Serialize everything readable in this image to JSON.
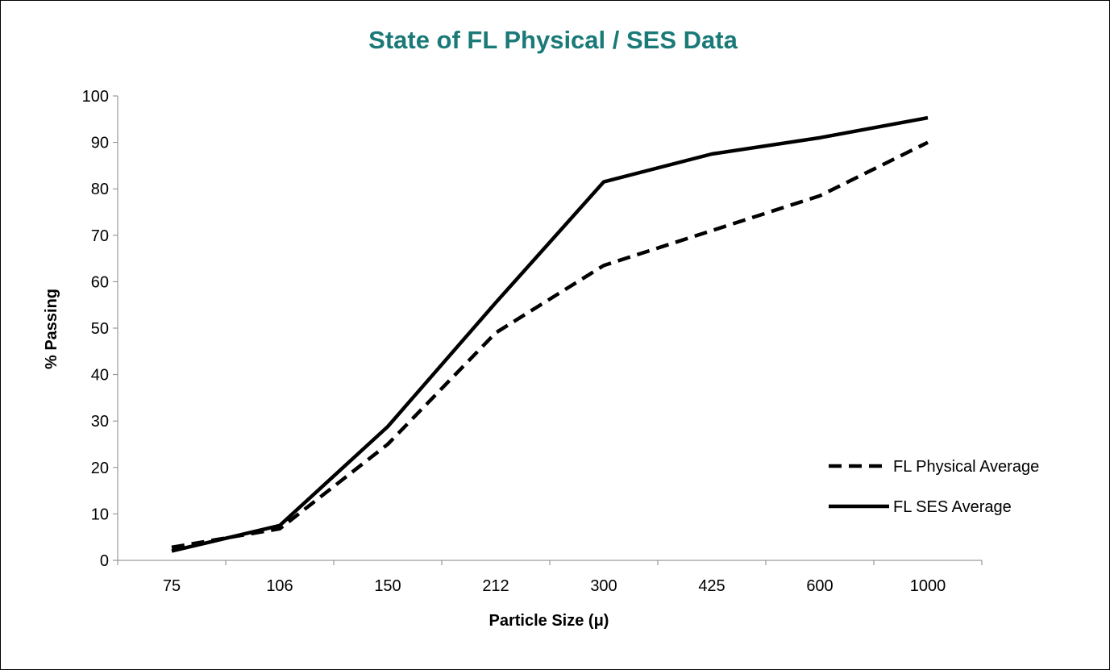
{
  "chart_data": {
    "type": "line",
    "title": "State of FL Physical / SES Data",
    "title_color": "#1A7A78",
    "xlabel": "Particle Size (μ)",
    "ylabel": "% Passing",
    "categories": [
      "75",
      "106",
      "150",
      "212",
      "300",
      "425",
      "600",
      "1000"
    ],
    "ylim": [
      0,
      100
    ],
    "yticks": [
      "0",
      "10",
      "20",
      "30",
      "40",
      "50",
      "60",
      "70",
      "80",
      "90",
      "100"
    ],
    "grid": false,
    "legend_position": "right",
    "series": [
      {
        "name": "FL Physical Average",
        "line_style": "dashed",
        "color": "#000000",
        "values": [
          2.8,
          6.8,
          25.0,
          49.0,
          63.5,
          71.0,
          78.5,
          90.0
        ]
      },
      {
        "name": "FL SES Average",
        "line_style": "solid",
        "color": "#000000",
        "values": [
          2.0,
          7.5,
          28.8,
          55.5,
          81.5,
          87.5,
          91.0,
          95.3
        ]
      }
    ]
  }
}
